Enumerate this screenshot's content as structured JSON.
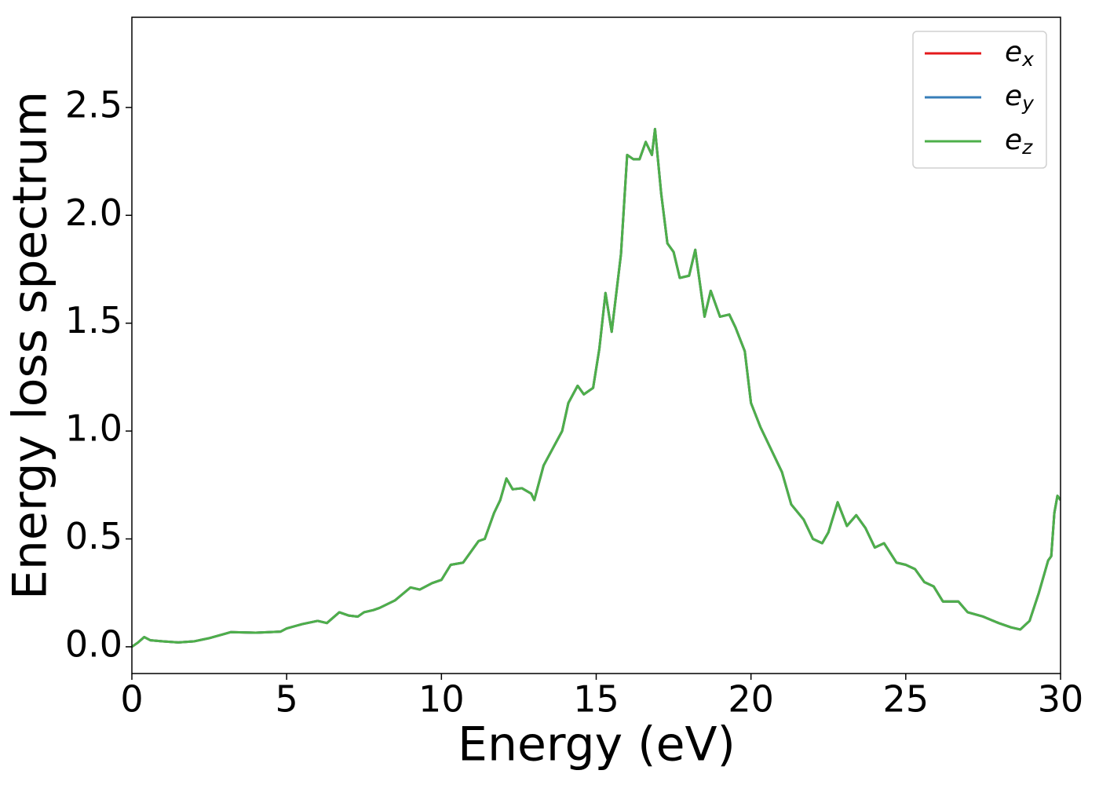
{
  "chart_data": {
    "type": "line",
    "xlabel": "Energy (eV)",
    "ylabel": "Energy loss spectrum",
    "x": [
      0,
      0.2,
      0.4,
      0.6,
      1.0,
      1.5,
      2.0,
      2.5,
      3.0,
      3.2,
      4.0,
      4.8,
      5.0,
      5.5,
      6.0,
      6.3,
      6.7,
      7.0,
      7.3,
      7.5,
      7.8,
      8.0,
      8.5,
      9.0,
      9.3,
      9.7,
      10.0,
      10.3,
      10.7,
      11.0,
      11.2,
      11.4,
      11.7,
      11.9,
      12.1,
      12.3,
      12.6,
      12.9,
      13.0,
      13.3,
      13.6,
      13.9,
      14.1,
      14.4,
      14.6,
      14.9,
      15.1,
      15.3,
      15.5,
      15.8,
      16.0,
      16.2,
      16.4,
      16.6,
      16.8,
      16.9,
      17.1,
      17.3,
      17.5,
      17.7,
      18.0,
      18.2,
      18.5,
      18.7,
      19.0,
      19.3,
      19.5,
      19.8,
      20.0,
      20.3,
      20.6,
      21.0,
      21.3,
      21.7,
      22.0,
      22.3,
      22.5,
      22.8,
      23.1,
      23.4,
      23.7,
      24.0,
      24.3,
      24.7,
      25.0,
      25.3,
      25.6,
      25.9,
      26.2,
      26.7,
      27.0,
      27.5,
      28.0,
      28.4,
      28.7,
      29.0,
      29.3,
      29.5,
      29.6,
      29.7,
      29.8,
      29.9,
      30.0
    ],
    "series": [
      {
        "name": "e",
        "sub": "x",
        "color": "#e41a1c",
        "values": [
          0,
          0.02,
          0.045,
          0.03,
          0.025,
          0.02,
          0.025,
          0.04,
          0.06,
          0.068,
          0.065,
          0.07,
          0.085,
          0.105,
          0.12,
          0.11,
          0.16,
          0.145,
          0.14,
          0.16,
          0.17,
          0.18,
          0.215,
          0.275,
          0.265,
          0.295,
          0.31,
          0.38,
          0.39,
          0.45,
          0.49,
          0.5,
          0.62,
          0.68,
          0.78,
          0.73,
          0.735,
          0.71,
          0.68,
          0.84,
          0.92,
          1.0,
          1.13,
          1.21,
          1.17,
          1.2,
          1.38,
          1.64,
          1.46,
          1.82,
          2.28,
          2.26,
          2.26,
          2.34,
          2.28,
          2.4,
          2.1,
          1.87,
          1.83,
          1.71,
          1.72,
          1.84,
          1.53,
          1.65,
          1.53,
          1.54,
          1.48,
          1.37,
          1.13,
          1.02,
          0.93,
          0.81,
          0.66,
          0.59,
          0.5,
          0.48,
          0.53,
          0.67,
          0.56,
          0.61,
          0.55,
          0.46,
          0.48,
          0.39,
          0.38,
          0.36,
          0.3,
          0.28,
          0.21,
          0.21,
          0.16,
          0.14,
          0.11,
          0.09,
          0.08,
          0.12,
          0.25,
          0.35,
          0.4,
          0.42,
          0.62,
          0.7,
          0.68
        ]
      },
      {
        "name": "e",
        "sub": "y",
        "color": "#377eb8",
        "values": [
          0,
          0.02,
          0.045,
          0.03,
          0.025,
          0.02,
          0.025,
          0.04,
          0.06,
          0.068,
          0.065,
          0.07,
          0.085,
          0.105,
          0.12,
          0.11,
          0.16,
          0.145,
          0.14,
          0.16,
          0.17,
          0.18,
          0.215,
          0.275,
          0.265,
          0.295,
          0.31,
          0.38,
          0.39,
          0.45,
          0.49,
          0.5,
          0.62,
          0.68,
          0.78,
          0.73,
          0.735,
          0.71,
          0.68,
          0.84,
          0.92,
          1.0,
          1.13,
          1.21,
          1.17,
          1.2,
          1.38,
          1.64,
          1.46,
          1.82,
          2.28,
          2.26,
          2.26,
          2.34,
          2.28,
          2.4,
          2.1,
          1.87,
          1.83,
          1.71,
          1.72,
          1.84,
          1.53,
          1.65,
          1.53,
          1.54,
          1.48,
          1.37,
          1.13,
          1.02,
          0.93,
          0.81,
          0.66,
          0.59,
          0.5,
          0.48,
          0.53,
          0.67,
          0.56,
          0.61,
          0.55,
          0.46,
          0.48,
          0.39,
          0.38,
          0.36,
          0.3,
          0.28,
          0.21,
          0.21,
          0.16,
          0.14,
          0.11,
          0.09,
          0.08,
          0.12,
          0.25,
          0.35,
          0.4,
          0.42,
          0.62,
          0.7,
          0.68
        ]
      },
      {
        "name": "e",
        "sub": "z",
        "color": "#4daf4a",
        "values": [
          0,
          0.02,
          0.045,
          0.03,
          0.025,
          0.02,
          0.025,
          0.04,
          0.06,
          0.068,
          0.065,
          0.07,
          0.085,
          0.105,
          0.12,
          0.11,
          0.16,
          0.145,
          0.14,
          0.16,
          0.17,
          0.18,
          0.215,
          0.275,
          0.265,
          0.295,
          0.31,
          0.38,
          0.39,
          0.45,
          0.49,
          0.5,
          0.62,
          0.68,
          0.78,
          0.73,
          0.735,
          0.71,
          0.68,
          0.84,
          0.92,
          1.0,
          1.13,
          1.21,
          1.17,
          1.2,
          1.38,
          1.64,
          1.46,
          1.82,
          2.28,
          2.26,
          2.26,
          2.34,
          2.28,
          2.4,
          2.1,
          1.87,
          1.83,
          1.71,
          1.72,
          1.84,
          1.53,
          1.65,
          1.53,
          1.54,
          1.48,
          1.37,
          1.13,
          1.02,
          0.93,
          0.81,
          0.66,
          0.59,
          0.5,
          0.48,
          0.53,
          0.67,
          0.56,
          0.61,
          0.55,
          0.46,
          0.48,
          0.39,
          0.38,
          0.36,
          0.3,
          0.28,
          0.21,
          0.21,
          0.16,
          0.14,
          0.11,
          0.09,
          0.08,
          0.12,
          0.25,
          0.35,
          0.4,
          0.42,
          0.62,
          0.7,
          0.68
        ]
      }
    ],
    "xlim": [
      0,
      30
    ],
    "xticks": [
      0,
      5,
      10,
      15,
      20,
      25,
      30
    ],
    "ylim": [
      -0.124,
      2.918
    ],
    "yticks": [
      {
        "value": 0,
        "label": "0.0"
      },
      0.5,
      {
        "value": 1,
        "label": "1.0"
      },
      1.5,
      {
        "value": 2,
        "label": "2.0"
      },
      2.5
    ],
    "legend": "upper right",
    "grid": false
  }
}
